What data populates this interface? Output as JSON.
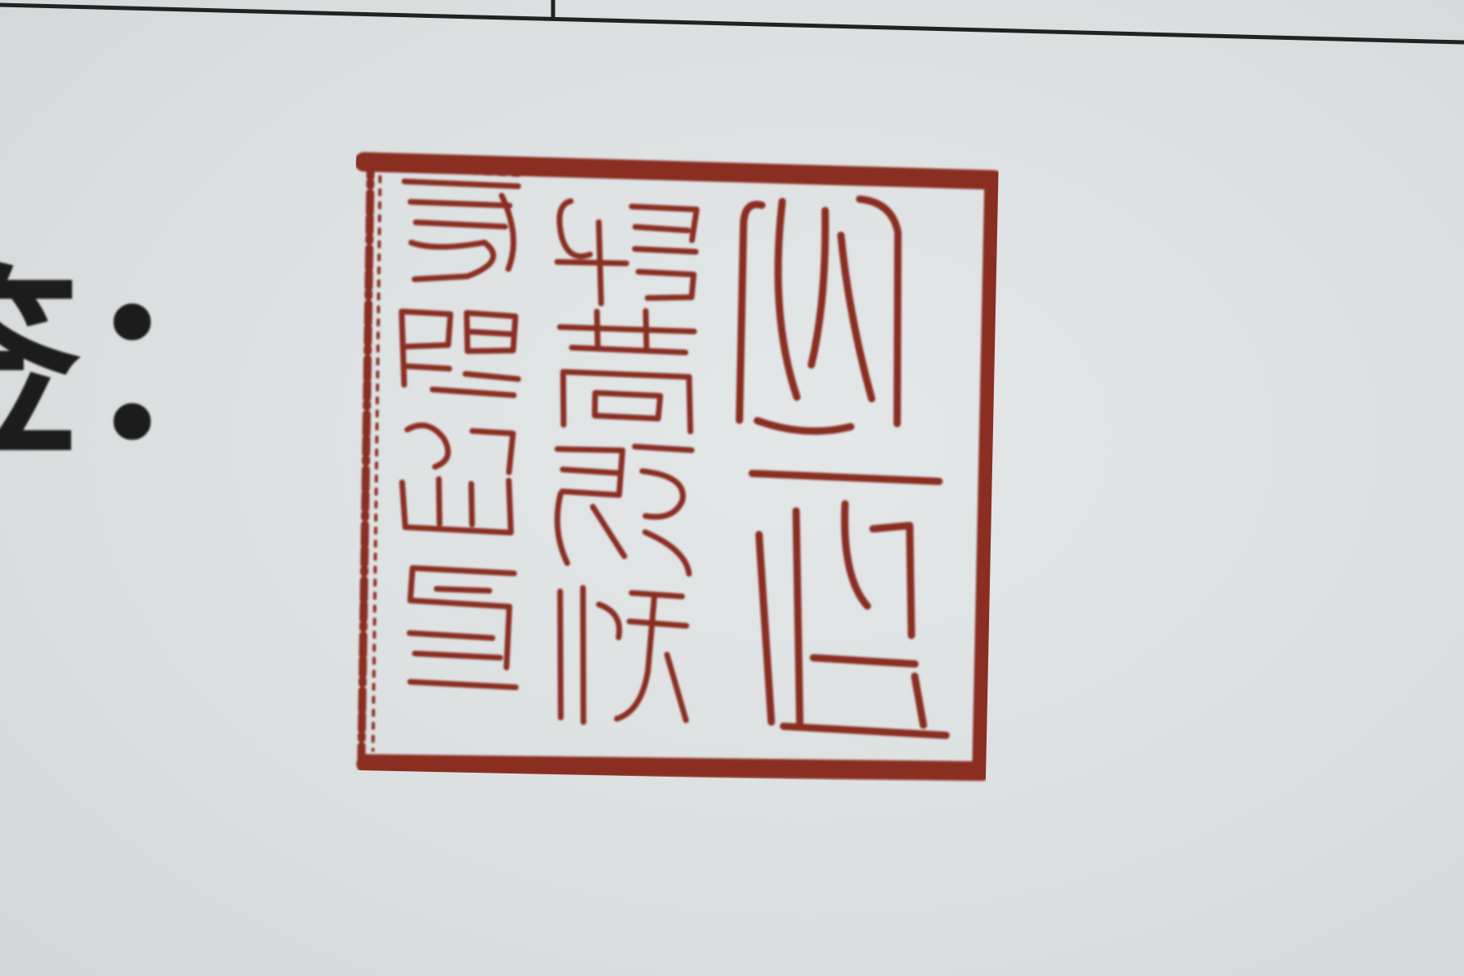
{
  "document": {
    "field_label": "签：",
    "seal": {
      "legend": "心正欣赏殷商甲骨文字",
      "ink_color": "#8a2e23"
    },
    "paper_color": "#dcdfe0"
  }
}
